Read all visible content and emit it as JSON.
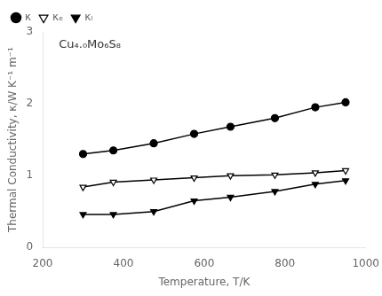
{
  "chart_data": {
    "type": "line",
    "annotations": [
      "Cu₄.₀Mo₆S₈"
    ],
    "xlabel": "Temperature, T/K",
    "ylabel": "Thermal Conductivity, κ/W K⁻¹ m⁻¹",
    "xlim": [
      200,
      1000
    ],
    "ylim": [
      0,
      3
    ],
    "xticks": [
      200,
      400,
      600,
      800,
      1000
    ],
    "yticks": [
      0,
      1,
      2,
      3
    ],
    "grid": false,
    "legend": "upper left",
    "series": [
      {
        "name": "κ",
        "color": "#000000",
        "marker": "circle",
        "x": [
          300,
          375,
          475,
          575,
          665,
          775,
          875,
          950
        ],
        "values": [
          1.3,
          1.35,
          1.45,
          1.58,
          1.68,
          1.8,
          1.95,
          2.02
        ]
      },
      {
        "name": "κₑ",
        "color": "#000000",
        "marker": "triangle_down_open",
        "x": [
          300,
          375,
          475,
          575,
          665,
          775,
          875,
          950
        ],
        "values": [
          0.84,
          0.91,
          0.94,
          0.97,
          1.0,
          1.01,
          1.04,
          1.07
        ]
      },
      {
        "name": "κₗ",
        "color": "#000000",
        "marker": "triangle_down",
        "x": [
          300,
          375,
          475,
          575,
          665,
          775,
          875,
          950
        ],
        "values": [
          0.46,
          0.46,
          0.5,
          0.65,
          0.7,
          0.78,
          0.88,
          0.93
        ]
      }
    ]
  }
}
